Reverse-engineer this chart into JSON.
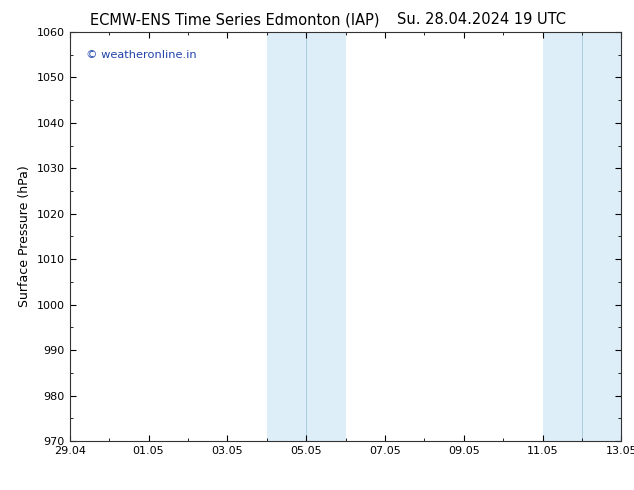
{
  "title_left": "ECMW-ENS Time Series Edmonton (IAP)",
  "title_right": "Su. 28.04.2024 19 UTC",
  "ylabel": "Surface Pressure (hPa)",
  "ylim": [
    970,
    1060
  ],
  "yticks": [
    970,
    980,
    990,
    1000,
    1010,
    1020,
    1030,
    1040,
    1050,
    1060
  ],
  "xtick_labels": [
    "29.04",
    "01.05",
    "03.05",
    "05.05",
    "07.05",
    "09.05",
    "11.05",
    "13.05"
  ],
  "xtick_positions": [
    0,
    2,
    4,
    6,
    8,
    10,
    12,
    14
  ],
  "xlim": [
    0,
    14
  ],
  "shaded_bands": [
    {
      "x_start": 5.0,
      "x_end": 5.5
    },
    {
      "x_start": 5.5,
      "x_end": 7.0
    },
    {
      "x_start": 12.0,
      "x_end": 12.5
    },
    {
      "x_start": 12.5,
      "x_end": 14.0
    }
  ],
  "shaded_color": "#deeef8",
  "band_divider_color": "#aaccdd",
  "watermark_text": "© weatheronline.in",
  "watermark_color": "#2244aa",
  "background_color": "#ffffff",
  "plot_background": "#ffffff",
  "title_fontsize": 10.5,
  "axis_label_fontsize": 9,
  "tick_fontsize": 8
}
